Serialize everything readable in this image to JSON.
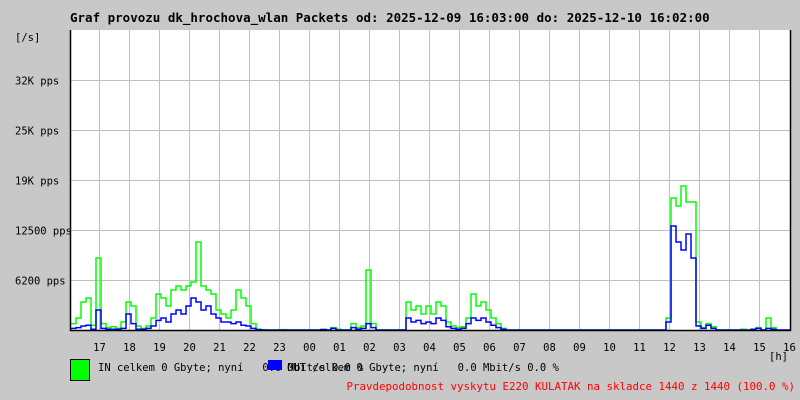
{
  "title": "Graf provozu dk_hrochova_wlan Packets od: 2025-12-09 16:03:00 do: 2025-12-10 16:02:00",
  "chart_data": {
    "type": "line",
    "ylabel": "[/s]",
    "xlabel": "[h]",
    "ylim": [
      0,
      37500
    ],
    "y_ticks": [
      {
        "value": 6250,
        "label": "6200 pps"
      },
      {
        "value": 12500,
        "label": "12500 pps"
      },
      {
        "value": 18750,
        "label": "19K pps"
      },
      {
        "value": 25000,
        "label": "25K pps"
      },
      {
        "value": 31250,
        "label": "32K pps"
      }
    ],
    "x_range": [
      "2025-12-09 16:03",
      "2025-12-10 16:02"
    ],
    "x_tick_labels": [
      "17",
      "18",
      "19",
      "20",
      "21",
      "22",
      "23",
      "00",
      "01",
      "02",
      "03",
      "04",
      "05",
      "06",
      "07",
      "08",
      "09",
      "10",
      "11",
      "12",
      "13",
      "14",
      "15",
      "16"
    ],
    "x_sample_interval_min": 10,
    "x_first_sample": "2025-12-09 16:10",
    "grid": true,
    "series": [
      {
        "name": "IN",
        "color": "#00ff00",
        "values": [
          800,
          1500,
          3500,
          4000,
          600,
          9000,
          800,
          300,
          400,
          200,
          1000,
          3500,
          3000,
          500,
          200,
          500,
          1500,
          4500,
          4000,
          3000,
          5000,
          5500,
          5000,
          5500,
          6000,
          11000,
          5500,
          5000,
          4500,
          2500,
          2000,
          1500,
          2500,
          5000,
          4000,
          3000,
          800,
          100,
          50,
          0,
          0,
          0,
          50,
          0,
          0,
          0,
          0,
          0,
          0,
          0,
          100,
          0,
          300,
          100,
          0,
          0,
          800,
          300,
          500,
          7500,
          800,
          0,
          0,
          0,
          0,
          0,
          0,
          3500,
          2500,
          3000,
          2000,
          3000,
          2000,
          3500,
          3000,
          1000,
          500,
          300,
          400,
          1500,
          4500,
          3000,
          3500,
          2500,
          1500,
          800,
          200,
          0,
          0,
          0,
          0,
          0,
          0,
          0,
          0,
          0,
          0,
          0,
          0,
          0,
          0,
          0,
          0,
          0,
          0,
          0,
          0,
          0,
          0,
          0,
          0,
          0,
          0,
          0,
          0,
          0,
          0,
          0,
          0,
          1500,
          16500,
          15500,
          18000,
          16000,
          16000,
          1000,
          300,
          800,
          400,
          0,
          0,
          0,
          0,
          0,
          100,
          0,
          0,
          300,
          0,
          1500,
          300,
          0,
          0,
          0
        ]
      },
      {
        "name": "OUT",
        "color": "#0000ff",
        "values": [
          200,
          300,
          500,
          600,
          100,
          2500,
          200,
          100,
          100,
          100,
          200,
          2000,
          800,
          100,
          100,
          200,
          500,
          1200,
          1500,
          1000,
          2000,
          2500,
          2000,
          3000,
          4000,
          3500,
          2500,
          3000,
          2000,
          1500,
          1000,
          1000,
          800,
          1000,
          600,
          500,
          200,
          50,
          0,
          0,
          0,
          0,
          0,
          0,
          0,
          0,
          0,
          0,
          0,
          0,
          50,
          0,
          200,
          0,
          0,
          0,
          300,
          100,
          200,
          800,
          300,
          0,
          0,
          0,
          0,
          0,
          0,
          1500,
          1000,
          1200,
          800,
          1000,
          800,
          1500,
          1200,
          400,
          200,
          100,
          200,
          800,
          1500,
          1200,
          1500,
          1000,
          600,
          300,
          100,
          0,
          0,
          0,
          0,
          0,
          0,
          0,
          0,
          0,
          0,
          0,
          0,
          0,
          0,
          0,
          0,
          0,
          0,
          0,
          0,
          0,
          0,
          0,
          0,
          0,
          0,
          0,
          0,
          0,
          0,
          0,
          0,
          1000,
          13000,
          11000,
          10000,
          12000,
          9000,
          500,
          200,
          600,
          200,
          0,
          0,
          0,
          0,
          0,
          0,
          0,
          100,
          200,
          0,
          200,
          100,
          0,
          0,
          0
        ]
      }
    ]
  },
  "legend": {
    "in": {
      "text": "IN celkem 0 Gbyte; nyní   0.0 Mbit/s 0.0 %",
      "color": "#00ff00"
    },
    "out": {
      "text": "OUT celkem 0 Gbyte; nyní   0.0 Mbit/s 0.0 %",
      "color": "#0000ff"
    }
  },
  "footer_note": "Pravdepodobnost vyskytu E220 KULATAK na skladce 1440 z 1440 (100.0 %)",
  "colors": {
    "background": "#c8c8c8",
    "plot": "#ffffff",
    "grid": "#c0c0c0",
    "note": "#ff0000"
  }
}
